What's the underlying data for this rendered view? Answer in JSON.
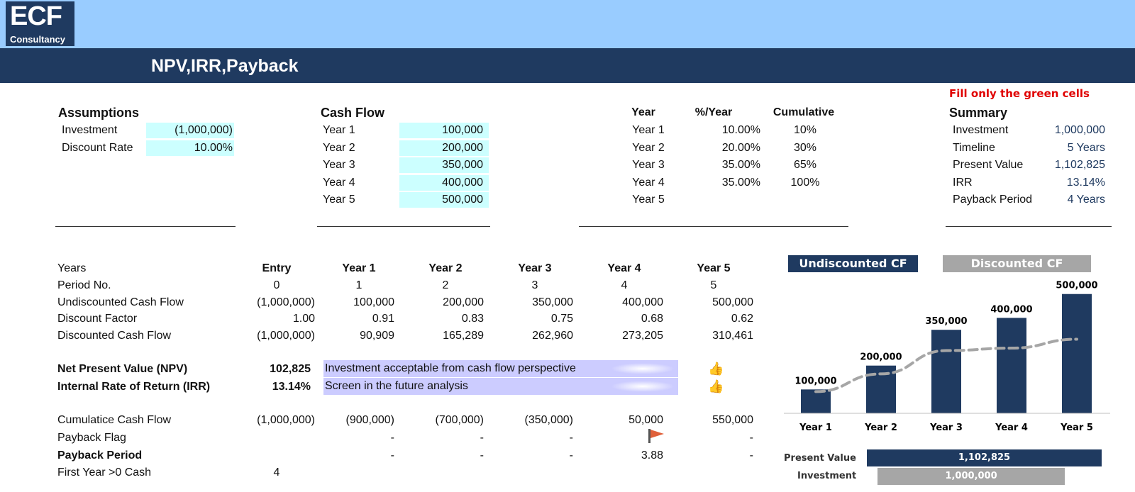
{
  "logo": {
    "main": "ECF",
    "sub": "Consultancy"
  },
  "title": "NPV,IRR,Payback",
  "note": "Fill only the green cells",
  "assumptions": {
    "heading": "Assumptions",
    "investment_label": "Investment",
    "investment_value": "(1,000,000)",
    "rate_label": "Discount Rate",
    "rate_value": "10.00%"
  },
  "cashflow": {
    "heading": "Cash Flow",
    "rows": [
      {
        "label": "Year 1",
        "value": "100,000"
      },
      {
        "label": "Year 2",
        "value": "200,000"
      },
      {
        "label": "Year 3",
        "value": "350,000"
      },
      {
        "label": "Year 4",
        "value": "400,000"
      },
      {
        "label": "Year 5",
        "value": "500,000"
      }
    ]
  },
  "growth": {
    "headers": [
      "Year",
      "%/Year",
      "Cumulative"
    ],
    "rows": [
      {
        "year": "Year 1",
        "pct": "10.00%",
        "cum": "10%"
      },
      {
        "year": "Year 2",
        "pct": "20.00%",
        "cum": "30%"
      },
      {
        "year": "Year 3",
        "pct": "35.00%",
        "cum": "65%"
      },
      {
        "year": "Year 4",
        "pct": "35.00%",
        "cum": "100%"
      },
      {
        "year": "Year 5",
        "pct": "",
        "cum": ""
      }
    ]
  },
  "summary": {
    "heading": "Summary",
    "rows": [
      {
        "label": "Investment",
        "value": "1,000,000"
      },
      {
        "label": "Timeline",
        "value": "5 Years"
      },
      {
        "label": "Present Value",
        "value": "1,102,825"
      },
      {
        "label": "IRR",
        "value": "13.14%"
      },
      {
        "label": "Payback Period",
        "value": "4 Years"
      }
    ]
  },
  "table": {
    "years_label": "Years",
    "columns": [
      "Entry",
      "Year 1",
      "Year 2",
      "Year 3",
      "Year 4",
      "Year 5"
    ],
    "rows": [
      {
        "label": "Period No.",
        "values": [
          "0",
          "1",
          "2",
          "3",
          "4",
          "5"
        ]
      },
      {
        "label": "Undiscounted Cash Flow",
        "values": [
          "(1,000,000)",
          "100,000",
          "200,000",
          "350,000",
          "400,000",
          "500,000"
        ]
      },
      {
        "label": "Discount Factor",
        "values": [
          "1.00",
          "0.91",
          "0.83",
          "0.75",
          "0.68",
          "0.62"
        ]
      },
      {
        "label": "Discounted Cash Flow",
        "values": [
          "(1,000,000)",
          "90,909",
          "165,289",
          "262,960",
          "273,205",
          "310,461"
        ]
      }
    ]
  },
  "npv": {
    "label": "Net Present Value (NPV)",
    "value": "102,825",
    "message": "Investment acceptable from cash flow perspective",
    "icon": "thumbs-up-icon"
  },
  "irr": {
    "label": "Internal Rate of Return (IRR)",
    "value": "13.14%",
    "message": "Screen in the future analysis",
    "icon": "thumbs-up-icon"
  },
  "payback": {
    "cum_label": "Cumulatice Cash Flow",
    "cum_values": [
      "(1,000,000)",
      "(900,000)",
      "(700,000)",
      "(350,000)",
      "50,000",
      "550,000"
    ],
    "flag_label": "Payback Flag",
    "flag_values": [
      "",
      "-",
      "-",
      "-",
      "",
      "-"
    ],
    "flag_icon": "flag-icon",
    "period_label": "Payback Period",
    "period_values": [
      "",
      "-",
      "-",
      "-",
      "3.88",
      "-"
    ],
    "first_label": "First Year >0 Cash",
    "first_value": "4"
  },
  "legend": {
    "undiscounted": "Undiscounted CF",
    "discounted": "Discounted CF"
  },
  "colors": {
    "navy": "#1f3a60",
    "grey": "#a6a6a6",
    "light_blue": "#99ccff",
    "green_cell": "#ccffff",
    "lavender": "#ccccff",
    "note_red": "#e00000"
  },
  "chart_data": {
    "type": "bar",
    "categories": [
      "Year 1",
      "Year 2",
      "Year 3",
      "Year 4",
      "Year 5"
    ],
    "series": [
      {
        "name": "Undiscounted CF",
        "values": [
          100000,
          200000,
          350000,
          400000,
          500000
        ],
        "labels": [
          "100,000",
          "200,000",
          "350,000",
          "400,000",
          "500,000"
        ]
      },
      {
        "name": "Discounted CF",
        "values": [
          90909,
          165289,
          262960,
          273205,
          310461
        ]
      }
    ],
    "ylim": [
      0,
      520000
    ]
  },
  "bar_chart_2": {
    "type": "bar",
    "orientation": "horizontal",
    "categories": [
      "Present Value",
      "Investment"
    ],
    "values": [
      1102825,
      1000000
    ],
    "labels": [
      "1,102,825",
      "1,000,000"
    ]
  }
}
